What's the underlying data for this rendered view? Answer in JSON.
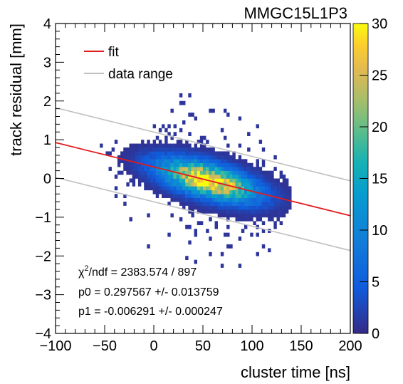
{
  "chart_data": {
    "type": "heatmap",
    "title": "MMGC15L1P3",
    "xlabel": "cluster time [ns]",
    "ylabel": "track residual [mm]",
    "xlim": [
      -100,
      200
    ],
    "ylim": [
      -4,
      4
    ],
    "x_ticks": [
      -100,
      -50,
      0,
      50,
      100,
      150,
      200
    ],
    "x_tick_labels": [
      "−100",
      "−50",
      "0",
      "50",
      "100",
      "150",
      "200"
    ],
    "y_ticks": [
      -4,
      -3,
      -2,
      -1,
      0,
      1,
      2,
      3,
      4
    ],
    "y_tick_labels": [
      "−4",
      "−3",
      "−2",
      "−1",
      "0",
      "1",
      "2",
      "3",
      "4"
    ],
    "colorbar": {
      "range": [
        0,
        30
      ],
      "ticks": [
        0,
        5,
        10,
        15,
        20,
        25,
        30
      ],
      "tick_labels": [
        "0",
        "5",
        "10",
        "15",
        "20",
        "25",
        "30"
      ]
    },
    "legend": {
      "placement": "top-left",
      "entries": [
        {
          "label": "fit",
          "color": "#e31a1c"
        },
        {
          "label": "data range",
          "color": "#c0c0c0"
        }
      ]
    },
    "fit": {
      "p0": 0.297567,
      "p1": -0.006291
    },
    "data_range_offset": 0.9,
    "heatmap_model": {
      "x_center": 55,
      "x_sigma": 32,
      "y_sigma": 0.28,
      "x_range": [
        -60,
        140
      ],
      "peak": 30,
      "bins_x": 100,
      "bins_y": 80
    },
    "stats": [
      {
        "prefix": "χ",
        "sup": "2",
        "text": "/ndf = 2383.574 / 897"
      },
      {
        "prefix": "",
        "sup": "",
        "text": "p0 = 0.297567 +/- 0.013759"
      },
      {
        "prefix": "",
        "sup": "",
        "text": "p1 = -0.006291 +/- 0.000247"
      }
    ]
  }
}
